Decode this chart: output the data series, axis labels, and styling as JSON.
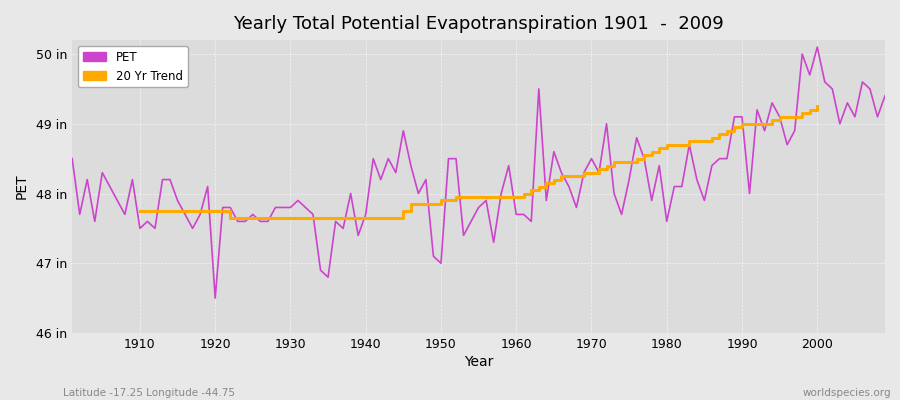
{
  "title": "Yearly Total Potential Evapotranspiration 1901  -  2009",
  "ylabel": "PET",
  "xlabel": "Year",
  "pet_color": "#cc44cc",
  "trend_color": "#ffaa00",
  "bg_color": "#e8e8e8",
  "plot_bg_color": "#dcdcdc",
  "footer_left": "Latitude -17.25 Longitude -44.75",
  "footer_right": "worldspecies.org",
  "ylim": [
    46.0,
    50.2
  ],
  "yticks": [
    46,
    47,
    48,
    49,
    50
  ],
  "years": [
    1901,
    1902,
    1903,
    1904,
    1905,
    1906,
    1907,
    1908,
    1909,
    1910,
    1911,
    1912,
    1913,
    1914,
    1915,
    1916,
    1917,
    1918,
    1919,
    1920,
    1921,
    1922,
    1923,
    1924,
    1925,
    1926,
    1927,
    1928,
    1929,
    1930,
    1931,
    1932,
    1933,
    1934,
    1935,
    1936,
    1937,
    1938,
    1939,
    1940,
    1941,
    1942,
    1943,
    1944,
    1945,
    1946,
    1947,
    1948,
    1949,
    1950,
    1951,
    1952,
    1953,
    1954,
    1955,
    1956,
    1957,
    1958,
    1959,
    1960,
    1961,
    1962,
    1963,
    1964,
    1965,
    1966,
    1967,
    1968,
    1969,
    1970,
    1971,
    1972,
    1973,
    1974,
    1975,
    1976,
    1977,
    1978,
    1979,
    1980,
    1981,
    1982,
    1983,
    1984,
    1985,
    1986,
    1987,
    1988,
    1989,
    1990,
    1991,
    1992,
    1993,
    1994,
    1995,
    1996,
    1997,
    1998,
    1999,
    2000,
    2001,
    2002,
    2003,
    2004,
    2005,
    2006,
    2007,
    2008,
    2009
  ],
  "pet_values": [
    48.5,
    47.7,
    48.2,
    47.6,
    48.3,
    48.1,
    47.9,
    47.7,
    48.2,
    47.5,
    47.6,
    47.5,
    48.2,
    48.2,
    47.9,
    47.7,
    47.5,
    47.7,
    48.1,
    46.5,
    47.8,
    47.8,
    47.6,
    47.6,
    47.7,
    47.6,
    47.6,
    47.8,
    47.8,
    47.8,
    47.9,
    47.8,
    47.7,
    46.9,
    46.8,
    47.6,
    47.5,
    48.0,
    47.4,
    47.7,
    48.5,
    48.2,
    48.5,
    48.3,
    48.9,
    48.4,
    48.0,
    48.2,
    47.1,
    47.0,
    48.5,
    48.5,
    47.4,
    47.6,
    47.8,
    47.9,
    47.3,
    48.0,
    48.4,
    47.7,
    47.7,
    47.6,
    49.5,
    47.9,
    48.6,
    48.3,
    48.1,
    47.8,
    48.3,
    48.5,
    48.3,
    49.0,
    48.0,
    47.7,
    48.2,
    48.8,
    48.5,
    47.9,
    48.4,
    47.6,
    48.1,
    48.1,
    48.7,
    48.2,
    47.9,
    48.4,
    48.5,
    48.5,
    49.1,
    49.1,
    48.0,
    49.2,
    48.9,
    49.3,
    49.1,
    48.7,
    48.9,
    50.0,
    49.7,
    50.1,
    49.6,
    49.5,
    49.0,
    49.3,
    49.1,
    49.6,
    49.5,
    49.1,
    49.4
  ],
  "trend_values": [
    null,
    null,
    null,
    null,
    null,
    null,
    null,
    null,
    null,
    47.75,
    47.75,
    47.75,
    47.75,
    47.75,
    47.75,
    47.75,
    47.75,
    47.75,
    47.75,
    47.75,
    47.75,
    47.65,
    47.65,
    47.65,
    47.65,
    47.65,
    47.65,
    47.65,
    47.65,
    47.65,
    47.65,
    47.65,
    47.65,
    47.65,
    47.65,
    47.65,
    47.65,
    47.65,
    47.65,
    47.65,
    47.65,
    47.65,
    47.65,
    47.65,
    47.75,
    47.85,
    47.85,
    47.85,
    47.85,
    47.9,
    47.9,
    47.95,
    47.95,
    47.95,
    47.95,
    47.95,
    47.95,
    47.95,
    47.95,
    47.95,
    48.0,
    48.05,
    48.1,
    48.15,
    48.2,
    48.25,
    48.25,
    48.25,
    48.3,
    48.3,
    48.35,
    48.4,
    48.45,
    48.45,
    48.45,
    48.5,
    48.55,
    48.6,
    48.65,
    48.7,
    48.7,
    48.7,
    48.75,
    48.75,
    48.75,
    48.8,
    48.85,
    48.9,
    48.95,
    49.0,
    49.0,
    49.0,
    49.0,
    49.05,
    49.1,
    49.1,
    49.1,
    49.15,
    49.2,
    49.25
  ],
  "legend_pet_label": "PET",
  "legend_trend_label": "20 Yr Trend"
}
